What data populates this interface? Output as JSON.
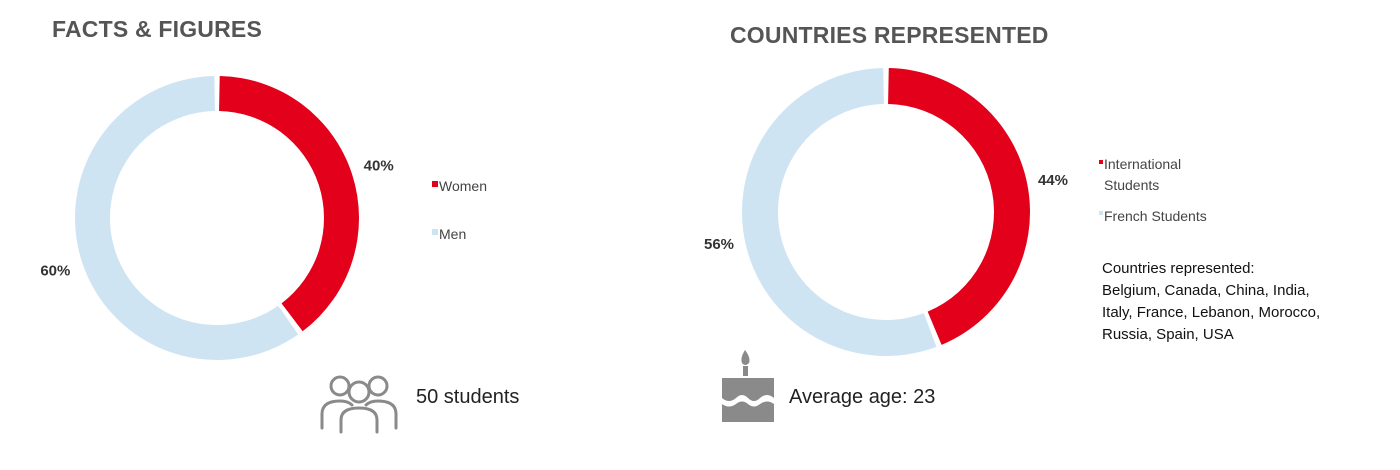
{
  "colors": {
    "red": "#E2001A",
    "lightblue": "#CFE4F3",
    "gray": "#8A8A8A"
  },
  "left_panel": {
    "title": "FACTS & FIGURES",
    "icon": "people-group-icon",
    "caption": "50 students",
    "legend": [
      "Women",
      "Men"
    ]
  },
  "right_panel": {
    "title": "COUNTRIES REPRESENTED",
    "icon": "birthday-cake-icon",
    "caption": "Average age: 23",
    "legend": [
      "International\nStudents",
      "French Students"
    ],
    "countries_heading": "Countries represented:",
    "countries_list": [
      "Belgium, Canada, China, India,",
      "Italy, France, Lebanon, Morocco,",
      "Russia, Spain, USA"
    ]
  },
  "chart_data": [
    {
      "type": "pie",
      "variant": "donut",
      "categories": [
        "Women",
        "Men"
      ],
      "values": [
        40,
        60
      ],
      "labels": [
        "40%",
        "60%"
      ],
      "colors": [
        "#E2001A",
        "#CFE4F3"
      ],
      "legend_position": "right"
    },
    {
      "type": "pie",
      "variant": "donut",
      "categories": [
        "International Students",
        "French Students"
      ],
      "values": [
        44,
        56
      ],
      "labels": [
        "44%",
        "56%"
      ],
      "colors": [
        "#E2001A",
        "#CFE4F3"
      ],
      "legend_position": "right"
    }
  ]
}
